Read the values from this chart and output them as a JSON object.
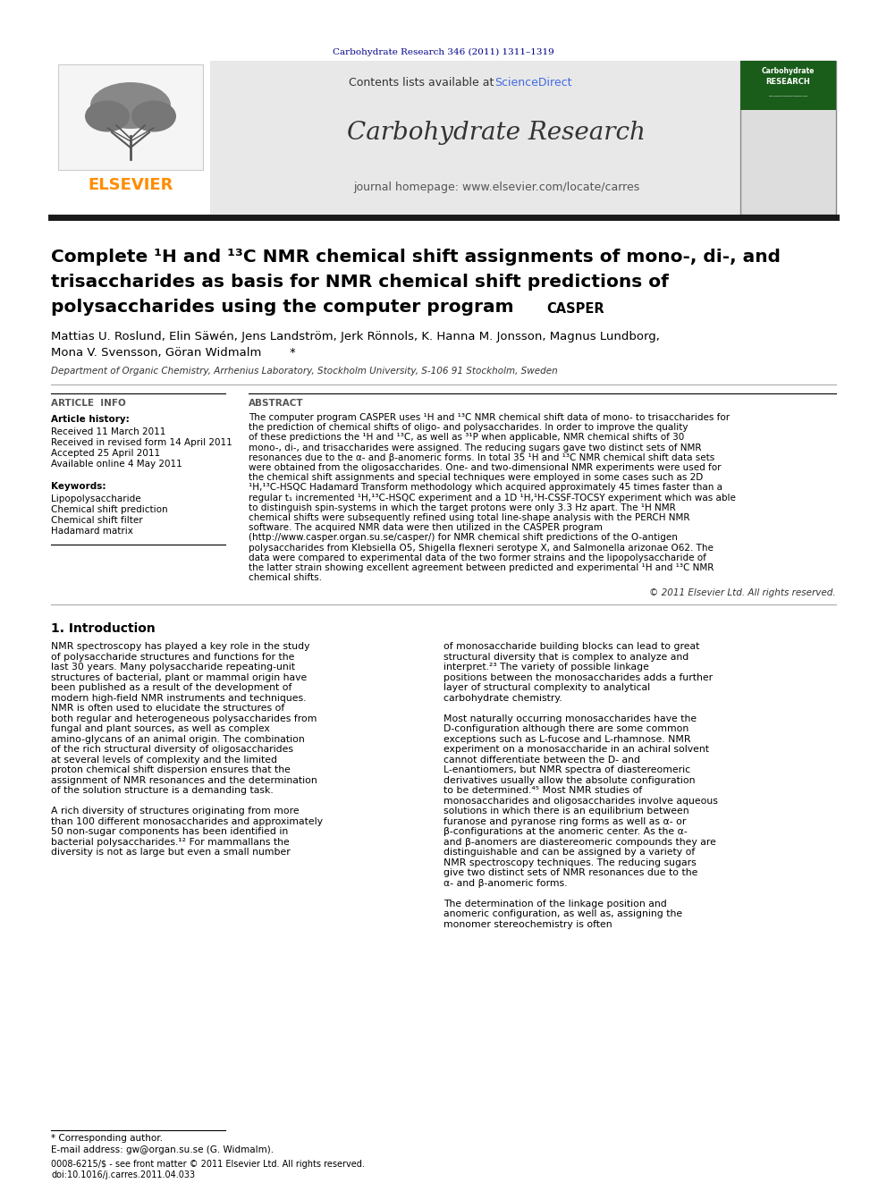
{
  "bg_color": "#ffffff",
  "top_journal_ref": "Carbohydrate Research 346 (2011) 1311–1319",
  "top_journal_ref_color": "#00008B",
  "header_bg": "#e8e8e8",
  "header_contents_plain": "Contents lists available at ",
  "header_sciencedirect": "ScienceDirect",
  "header_sciencedirect_color": "#4169E1",
  "header_journal": "Carbohydrate Research",
  "header_homepage": "journal homepage: www.elsevier.com/locate/carres",
  "elsevier_color": "#FF8C00",
  "divider_color": "#1a1a1a",
  "article_title_line1": "Complete ¹H and ¹³C NMR chemical shift assignments of mono-, di-, and",
  "article_title_line2": "trisaccharides as basis for NMR chemical shift predictions of",
  "article_title_line3": "polysaccharides using the computer program ",
  "article_title_casper": "CASPER",
  "authors": "Mattias U. Roslund, Elin Säwén, Jens Landström, Jerk Rönnols, K. Hanna M. Jonsson, Magnus Lundborg,",
  "authors2": "Mona V. Svensson, Göran Widmalm *",
  "affiliation": "Department of Organic Chemistry, Arrhenius Laboratory, Stockholm University, S-106 91 Stockholm, Sweden",
  "section_article_info": "ARTICLE  INFO",
  "section_abstract": "ABSTRACT",
  "article_history_label": "Article history:",
  "received1": "Received 11 March 2011",
  "received2": "Received in revised form 14 April 2011",
  "accepted": "Accepted 25 April 2011",
  "available": "Available online 4 May 2011",
  "keywords_label": "Keywords:",
  "keywords": [
    "Lipopolysaccharide",
    "Chemical shift prediction",
    "Chemical shift filter",
    "Hadamard matrix"
  ],
  "abstract_text": "The computer program CASPER uses ¹H and ¹³C NMR chemical shift data of mono- to trisaccharides for the prediction of chemical shifts of oligo- and polysaccharides. In order to improve the quality of these predictions the ¹H and ¹³C, as well as ³¹P when applicable, NMR chemical shifts of 30 mono-, di-, and trisaccharides were assigned. The reducing sugars gave two distinct sets of NMR resonances due to the α- and β-anomeric forms. In total 35 ¹H and ¹³C NMR chemical shift data sets were obtained from the oligosaccharides. One- and two-dimensional NMR experiments were used for the chemical shift assignments and special techniques were employed in some cases such as 2D ¹H,¹³C-HSQC Hadamard Transform methodology which acquired approximately 45 times faster than a regular t₁ incremented ¹H,¹³C-HSQC experiment and a 1D ¹H,¹H-CSSF-TOCSY experiment which was able to distinguish spin-systems in which the target protons were only 3.3 Hz apart. The ¹H NMR chemical shifts were subsequently refined using total line-shape analysis with the PERCH NMR software. The acquired NMR data were then utilized in the CASPER program (http://www.casper.organ.su.se/casper/) for NMR chemical shift predictions of the O-antigen polysaccharides from Klebsiella O5, Shigella flexneri serotype X, and Salmonella arizonae O62. The data were compared to experimental data of the two former strains and the lipopolysaccharide of the latter strain showing excellent agreement between predicted and experimental ¹H and ¹³C NMR chemical shifts.",
  "copyright": "© 2011 Elsevier Ltd. All rights reserved.",
  "intro_heading": "1. Introduction",
  "intro_col1_para1": "NMR spectroscopy has played a key role in the study of polysaccharide structures and functions for the last 30 years. Many polysaccharide repeating-unit structures of bacterial, plant or mammal origin have been published as a result of the development of modern high-field NMR instruments and techniques. NMR is often used to elucidate the structures of both regular and heterogeneous polysaccharides from fungal and plant sources, as well as complex amino-glycans of an animal origin. The combination of the rich structural diversity of oligosaccharides at several levels of complexity and the limited proton chemical shift dispersion ensures that the assignment of NMR resonances and the determination of the solution structure is a demanding task.",
  "intro_col1_para2": "A rich diversity of structures originating from more than 100 different monosaccharides and approximately 50 non-sugar components has been identified in bacterial polysaccharides.¹² For mammallans the diversity is not as large but even a small number",
  "intro_col2_para1": "of monosaccharide building blocks can lead to great structural diversity that is complex to analyze and interpret.²³ The variety of possible linkage positions between the monosaccharides adds a further layer of structural complexity to analytical carbohydrate chemistry.",
  "intro_col2_para2": "Most naturally occurring monosaccharides have the D-configuration although there are some common exceptions such as L-fucose and L-rhamnose. NMR experiment on a monosaccharide in an achiral solvent cannot differentiate between the D- and L-enantiomers, but NMR spectra of diastereomeric derivatives usually allow the absolute configuration to be determined.⁴⁵ Most NMR studies of monosaccharides and oligosaccharides involve aqueous solutions in which there is an equilibrium between furanose and pyranose ring forms as well as α- or β-configurations at the anomeric center. As the α- and β-anomers are diastereomeric compounds they are distinguishable and can be assigned by a variety of NMR spectroscopy techniques. The reducing sugars give two distinct sets of NMR resonances due to the α- and β-anomeric forms.",
  "intro_col2_para3": "The determination of the linkage position and anomeric configuration, as well as, assigning the monomer stereochemistry is often",
  "footnote_corresponding": "* Corresponding author.",
  "footnote_email": "E-mail address: gw@organ.su.se (G. Widmalm).",
  "footnote_issn": "0008-6215/$ - see front matter © 2011 Elsevier Ltd. All rights reserved.",
  "footnote_doi": "doi:10.1016/j.carres.2011.04.033"
}
